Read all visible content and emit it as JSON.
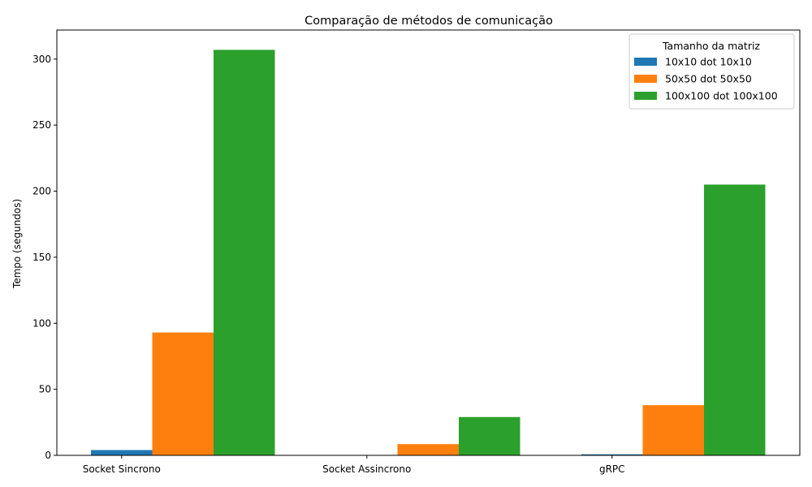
{
  "chart_data": {
    "type": "bar",
    "title": "Comparação de métodos de comunicação",
    "xlabel": "",
    "ylabel": "Tempo (segundos)",
    "categories": [
      "Socket Sincrono",
      "Socket Assincrono",
      "gRPC"
    ],
    "series": [
      {
        "name": "10x10 dot 10x10",
        "color": "#1f77b4",
        "values": [
          4.0,
          0.3,
          0.8
        ]
      },
      {
        "name": "50x50 dot 50x50",
        "color": "#ff7f0e",
        "values": [
          93.0,
          8.5,
          38.0
        ]
      },
      {
        "name": "100x100 dot 100x100",
        "color": "#2ca02c",
        "values": [
          307.0,
          29.0,
          205.0
        ]
      }
    ],
    "ylim": [
      0,
      322
    ],
    "yticks": [
      0,
      50,
      100,
      150,
      200,
      250,
      300
    ],
    "legend": {
      "title": "Tamanho da matriz",
      "position": "top-right"
    },
    "grid": false
  }
}
